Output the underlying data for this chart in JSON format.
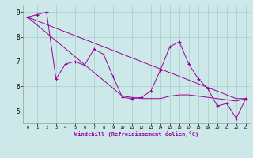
{
  "x": [
    0,
    1,
    2,
    3,
    4,
    5,
    6,
    7,
    8,
    9,
    10,
    11,
    12,
    13,
    14,
    15,
    16,
    17,
    18,
    19,
    20,
    21,
    22,
    23
  ],
  "y_main": [
    8.8,
    8.9,
    9.0,
    6.3,
    6.9,
    7.0,
    6.85,
    7.5,
    7.3,
    6.4,
    5.55,
    5.5,
    5.55,
    5.8,
    6.65,
    7.6,
    7.8,
    6.9,
    6.3,
    5.9,
    5.2,
    5.3,
    4.7,
    5.5
  ],
  "y_trend1": [
    8.8,
    8.65,
    8.5,
    8.35,
    8.2,
    8.05,
    7.9,
    7.75,
    7.6,
    7.45,
    7.3,
    7.15,
    7.0,
    6.85,
    6.7,
    6.55,
    6.4,
    6.25,
    6.1,
    5.95,
    5.8,
    5.65,
    5.5,
    5.5
  ],
  "y_trend2": [
    8.8,
    8.48,
    8.16,
    7.84,
    7.52,
    7.2,
    6.88,
    6.56,
    6.24,
    5.92,
    5.6,
    5.55,
    5.5,
    5.5,
    5.5,
    5.6,
    5.65,
    5.65,
    5.6,
    5.55,
    5.5,
    5.45,
    5.4,
    5.5
  ],
  "line_color": "#990099",
  "bg_color": "#cce8e8",
  "grid_color": "#aacccc",
  "xlabel": "Windchill (Refroidissement éolien,°C)",
  "ylim": [
    4.5,
    9.3
  ],
  "xlim": [
    -0.5,
    23.5
  ],
  "yticks": [
    5,
    6,
    7,
    8,
    9
  ],
  "xticks": [
    0,
    1,
    2,
    3,
    4,
    5,
    6,
    7,
    8,
    9,
    10,
    11,
    12,
    13,
    14,
    15,
    16,
    17,
    18,
    19,
    20,
    21,
    22,
    23
  ]
}
